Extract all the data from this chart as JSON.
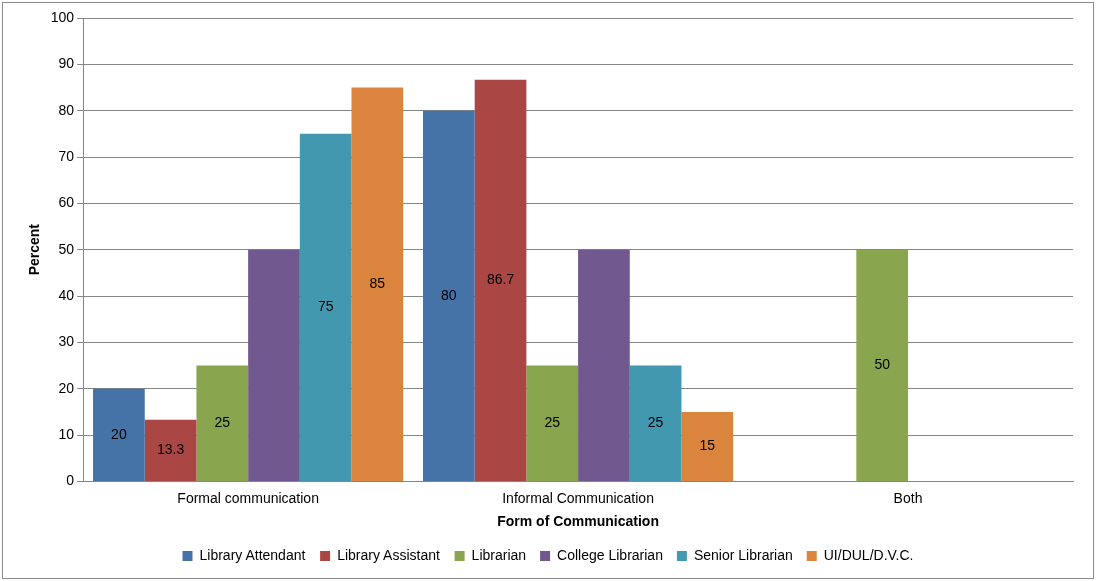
{
  "chart_data": {
    "type": "bar",
    "xlabel": "Form of Communication",
    "ylabel": "Percent",
    "categories": [
      "Formal communication",
      "Informal Communication",
      "Both"
    ],
    "series": [
      {
        "name": "Library Attendant",
        "color": "#4572a7",
        "values": [
          20,
          80,
          0
        ],
        "value_labels": [
          "20",
          "80",
          null
        ]
      },
      {
        "name": "Library Assistant",
        "color": "#aa4643",
        "values": [
          13.3,
          86.7,
          0
        ],
        "value_labels": [
          "13.3",
          "86.7",
          null
        ]
      },
      {
        "name": "Librarian",
        "color": "#89a54e",
        "values": [
          25,
          25,
          50
        ],
        "value_labels": [
          "25",
          "25",
          "50"
        ]
      },
      {
        "name": "College Librarian",
        "color": "#71588f",
        "values": [
          50,
          50,
          0
        ],
        "value_labels": [
          null,
          null,
          null
        ]
      },
      {
        "name": "Senior Librarian",
        "color": "#4198af",
        "values": [
          75,
          25,
          0
        ],
        "value_labels": [
          "75",
          "25",
          null
        ]
      },
      {
        "name": "UI/DUL/D.V.C.",
        "color": "#db843d",
        "values": [
          85,
          15,
          0
        ],
        "value_labels": [
          "85",
          "15",
          null
        ]
      }
    ],
    "ylim": [
      0,
      100
    ],
    "yticks": [
      0,
      10,
      20,
      30,
      40,
      50,
      60,
      70,
      80,
      90,
      100
    ],
    "grid": "y",
    "legend": "bottom"
  }
}
